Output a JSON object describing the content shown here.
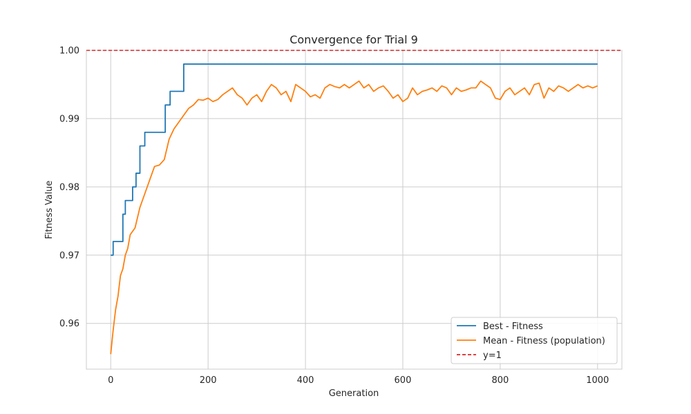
{
  "chart_data": {
    "type": "line",
    "title": "Convergence for Trial 9",
    "xlabel": "Generation",
    "ylabel": "Fitness Value",
    "xlim": [
      -50,
      1050
    ],
    "ylim": [
      0.9533,
      1.0
    ],
    "xticks": [
      0,
      200,
      400,
      600,
      800,
      1000
    ],
    "xtick_labels": [
      "0",
      "200",
      "400",
      "600",
      "800",
      "1000"
    ],
    "yticks": [
      0.96,
      0.97,
      0.98,
      0.99,
      1.0
    ],
    "ytick_labels": [
      "0.96",
      "0.97",
      "0.98",
      "0.99",
      "1.00"
    ],
    "grid": true,
    "legend_position": "lower-right",
    "series": [
      {
        "name": "Best - Fitness",
        "color": "#1f77b4",
        "style": "step",
        "x": [
          0,
          5,
          5,
          25,
          25,
          30,
          30,
          45,
          45,
          52,
          52,
          60,
          60,
          70,
          70,
          88,
          88,
          112,
          112,
          122,
          122,
          150,
          150,
          1000
        ],
        "y": [
          0.97,
          0.97,
          0.972,
          0.972,
          0.976,
          0.976,
          0.978,
          0.978,
          0.98,
          0.98,
          0.982,
          0.982,
          0.986,
          0.986,
          0.988,
          0.988,
          0.988,
          0.988,
          0.992,
          0.992,
          0.994,
          0.994,
          0.998,
          0.998
        ]
      },
      {
        "name": "Mean - Fitness (population)",
        "color": "#ff7f0e",
        "style": "line",
        "x": [
          0,
          5,
          10,
          15,
          20,
          25,
          30,
          35,
          40,
          50,
          60,
          70,
          80,
          90,
          100,
          110,
          120,
          130,
          140,
          150,
          160,
          170,
          180,
          190,
          200,
          210,
          220,
          230,
          240,
          250,
          260,
          270,
          280,
          290,
          300,
          310,
          320,
          330,
          340,
          350,
          360,
          370,
          380,
          390,
          400,
          410,
          420,
          430,
          440,
          450,
          460,
          470,
          480,
          490,
          500,
          510,
          520,
          530,
          540,
          550,
          560,
          570,
          580,
          590,
          600,
          610,
          620,
          630,
          640,
          650,
          660,
          670,
          680,
          690,
          700,
          710,
          720,
          730,
          740,
          750,
          760,
          770,
          780,
          790,
          800,
          810,
          820,
          830,
          840,
          850,
          860,
          870,
          880,
          890,
          900,
          910,
          920,
          930,
          940,
          950,
          960,
          970,
          980,
          990,
          1000
        ],
        "y": [
          0.9555,
          0.959,
          0.962,
          0.964,
          0.967,
          0.968,
          0.97,
          0.971,
          0.973,
          0.974,
          0.977,
          0.979,
          0.981,
          0.983,
          0.9832,
          0.984,
          0.987,
          0.9885,
          0.9895,
          0.9905,
          0.9915,
          0.992,
          0.9928,
          0.9927,
          0.993,
          0.9925,
          0.9928,
          0.9935,
          0.994,
          0.9945,
          0.9935,
          0.993,
          0.992,
          0.993,
          0.9935,
          0.9925,
          0.994,
          0.995,
          0.9945,
          0.9935,
          0.994,
          0.9925,
          0.995,
          0.9945,
          0.994,
          0.9932,
          0.9935,
          0.993,
          0.9945,
          0.995,
          0.9947,
          0.9945,
          0.995,
          0.9945,
          0.995,
          0.9955,
          0.9945,
          0.995,
          0.994,
          0.9945,
          0.9948,
          0.994,
          0.993,
          0.9935,
          0.9925,
          0.993,
          0.9945,
          0.9935,
          0.994,
          0.9942,
          0.9945,
          0.994,
          0.9948,
          0.9945,
          0.9935,
          0.9945,
          0.994,
          0.9942,
          0.9945,
          0.9945,
          0.9955,
          0.995,
          0.9945,
          0.993,
          0.9928,
          0.994,
          0.9945,
          0.9935,
          0.994,
          0.9945,
          0.9935,
          0.995,
          0.9952,
          0.993,
          0.9945,
          0.994,
          0.9948,
          0.9945,
          0.994,
          0.9945,
          0.995,
          0.9945,
          0.9948,
          0.9945,
          0.9948
        ]
      },
      {
        "name": "y=1",
        "color": "#d62728",
        "style": "dashed",
        "y_const": 1.0
      }
    ]
  }
}
